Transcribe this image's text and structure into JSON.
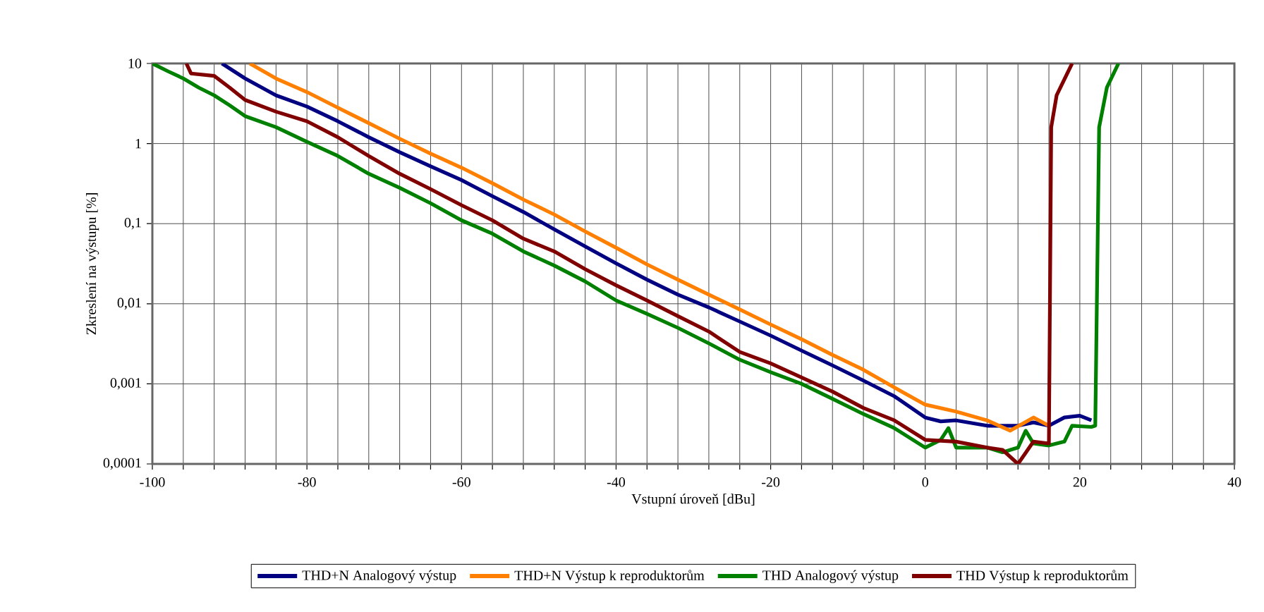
{
  "chart_data": {
    "type": "line",
    "xlabel": "Vstupní úroveň [dBu]",
    "ylabel": "Zkreslení na výstupu [%]",
    "xlim": [
      -100,
      40
    ],
    "ylim": [
      0.0001,
      10
    ],
    "log": "y",
    "grid": true,
    "legend": "bottom",
    "line_style": "solid",
    "marker": "none",
    "xticks": [
      -100,
      {
        "value": -96,
        "label": null
      },
      {
        "value": -92,
        "label": null
      },
      {
        "value": -88,
        "label": null
      },
      {
        "value": -84,
        "label": null
      },
      -80,
      {
        "value": -76,
        "label": null
      },
      {
        "value": -72,
        "label": null
      },
      {
        "value": -68,
        "label": null
      },
      {
        "value": -64,
        "label": null
      },
      -60,
      {
        "value": -56,
        "label": null
      },
      {
        "value": -52,
        "label": null
      },
      {
        "value": -48,
        "label": null
      },
      {
        "value": -44,
        "label": null
      },
      -40,
      {
        "value": -36,
        "label": null
      },
      {
        "value": -32,
        "label": null
      },
      {
        "value": -28,
        "label": null
      },
      {
        "value": -24,
        "label": null
      },
      -20,
      {
        "value": -16,
        "label": null
      },
      {
        "value": -12,
        "label": null
      },
      {
        "value": -8,
        "label": null
      },
      {
        "value": -4,
        "label": null
      },
      0,
      {
        "value": 4,
        "label": null
      },
      {
        "value": 8,
        "label": null
      },
      {
        "value": 12,
        "label": null
      },
      {
        "value": 16,
        "label": null
      },
      20,
      {
        "value": 24,
        "label": null
      },
      {
        "value": 28,
        "label": null
      },
      {
        "value": 32,
        "label": null
      },
      {
        "value": 36,
        "label": null
      },
      40
    ],
    "yticks": [
      {
        "value": 0.0001,
        "label": "0,0001"
      },
      {
        "value": 0.001,
        "label": "0,001"
      },
      {
        "value": 0.01,
        "label": "0,01"
      },
      {
        "value": 0.1,
        "label": "0,1"
      },
      1,
      10
    ],
    "series": [
      {
        "name": "THD+N Analogový výstup",
        "color": "#000080",
        "x": [
          -91,
          -88,
          -84,
          -80,
          -76,
          -72,
          -68,
          -64,
          -60,
          -56,
          -52,
          -48,
          -44,
          -40,
          -36,
          -32,
          -28,
          -24,
          -20,
          -16,
          -12,
          -8,
          -4,
          0,
          2,
          4,
          8,
          12,
          14,
          16,
          18,
          20,
          21.5
        ],
        "values": [
          10,
          6.5,
          4,
          2.9,
          1.9,
          1.2,
          0.78,
          0.52,
          0.35,
          0.22,
          0.14,
          0.085,
          0.052,
          0.032,
          0.02,
          0.013,
          0.009,
          0.006,
          0.004,
          0.0026,
          0.0017,
          0.0011,
          0.0007,
          0.00038,
          0.00034,
          0.00035,
          0.0003,
          0.0003,
          0.00033,
          0.0003,
          0.00038,
          0.0004,
          0.00035
        ]
      },
      {
        "name": "THD+N Výstup k reproduktorům",
        "color": "#ff8000",
        "x": [
          -87.4,
          -84,
          -80,
          -76,
          -72,
          -68,
          -64,
          -60,
          -56,
          -52,
          -48,
          -44,
          -40,
          -36,
          -32,
          -28,
          -24,
          -20,
          -16,
          -12,
          -8,
          -4,
          0,
          4,
          8,
          11,
          14,
          16
        ],
        "values": [
          10,
          6.5,
          4.4,
          2.8,
          1.8,
          1.15,
          0.75,
          0.5,
          0.32,
          0.2,
          0.13,
          0.08,
          0.05,
          0.031,
          0.02,
          0.013,
          0.0085,
          0.0055,
          0.0036,
          0.0023,
          0.0015,
          0.0009,
          0.00055,
          0.00045,
          0.00035,
          0.00026,
          0.00038,
          0.0003
        ]
      },
      {
        "name": "THD Analogový výstup",
        "color": "#008000",
        "x": [
          -100,
          -98,
          -96,
          -94,
          -92,
          -90,
          -88,
          -84,
          -80,
          -76,
          -72,
          -68,
          -64,
          -60,
          -56,
          -52,
          -48,
          -44,
          -40,
          -36,
          -32,
          -28,
          -24,
          -20,
          -16,
          -12,
          -8,
          -4,
          0,
          2,
          3,
          4,
          8,
          10,
          12,
          13,
          14,
          16,
          18,
          19,
          21.5,
          22,
          22.5,
          23.5,
          25
        ],
        "values": [
          10,
          8,
          6.5,
          5,
          4,
          3,
          2.2,
          1.6,
          1.05,
          0.7,
          0.42,
          0.28,
          0.18,
          0.11,
          0.075,
          0.045,
          0.03,
          0.019,
          0.011,
          0.0075,
          0.005,
          0.0032,
          0.002,
          0.0014,
          0.001,
          0.00065,
          0.00042,
          0.00028,
          0.00016,
          0.0002,
          0.00028,
          0.00016,
          0.00016,
          0.00014,
          0.00016,
          0.00026,
          0.00018,
          0.00017,
          0.00019,
          0.0003,
          0.00029,
          0.0003,
          1.6,
          5,
          10
        ]
      },
      {
        "name": "THD Výstup k reproduktorům",
        "color": "#800000",
        "x": [
          -95.6,
          -95,
          -92,
          -90,
          -88,
          -84,
          -80,
          -76,
          -72,
          -68,
          -64,
          -60,
          -56,
          -52,
          -48,
          -44,
          -40,
          -36,
          -32,
          -28,
          -24,
          -20,
          -16,
          -12,
          -8,
          -4,
          0,
          4,
          8,
          10,
          12,
          14,
          16,
          16.3,
          17,
          19
        ],
        "values": [
          10,
          7.5,
          7,
          5,
          3.5,
          2.5,
          1.9,
          1.2,
          0.7,
          0.42,
          0.27,
          0.17,
          0.11,
          0.065,
          0.045,
          0.027,
          0.017,
          0.011,
          0.007,
          0.0045,
          0.0025,
          0.0018,
          0.0012,
          0.0008,
          0.0005,
          0.00035,
          0.0002,
          0.00019,
          0.00016,
          0.00015,
          0.0001,
          0.00019,
          0.00018,
          1.6,
          4,
          10
        ]
      }
    ]
  }
}
